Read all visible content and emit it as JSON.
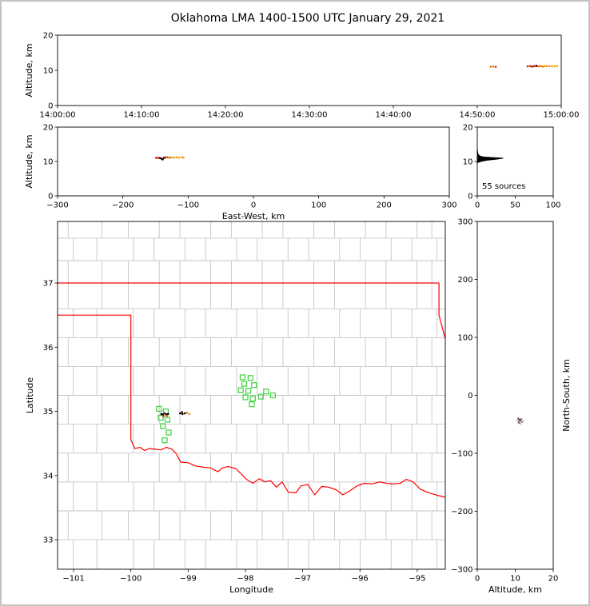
{
  "title": "Oklahoma LMA 1400-1500 UTC January 29, 2021",
  "chart_data": [
    {
      "id": "time_height",
      "type": "scatter",
      "xlabel": "",
      "ylabel": "Altitude, km",
      "xlim": [
        0,
        60
      ],
      "ylim": [
        0,
        20
      ],
      "xticks": [
        {
          "v": 0,
          "l": "14:00:00"
        },
        {
          "v": 10,
          "l": "14:10:00"
        },
        {
          "v": 20,
          "l": "14:20:00"
        },
        {
          "v": 30,
          "l": "14:30:00"
        },
        {
          "v": 40,
          "l": "14:40:00"
        },
        {
          "v": 50,
          "l": "14:50:00"
        },
        {
          "v": 60,
          "l": "15:00:00"
        }
      ],
      "yticks": [
        {
          "v": 0,
          "l": "0"
        },
        {
          "v": 10,
          "l": "10"
        },
        {
          "v": 20,
          "l": "20"
        }
      ],
      "points": [
        [
          51.6,
          11.05,
          "#e87000"
        ],
        [
          51.9,
          11.1,
          "#e87000"
        ],
        [
          52.2,
          11.0,
          "#c83200"
        ],
        [
          56.0,
          11.15,
          "#c81e00"
        ],
        [
          56.3,
          11.2,
          "#c81e00"
        ],
        [
          56.55,
          11.1,
          "#8c0000"
        ],
        [
          56.8,
          11.2,
          "#c81e00"
        ],
        [
          57.05,
          11.3,
          "#000000"
        ],
        [
          57.3,
          11.15,
          "#e85a00"
        ],
        [
          57.55,
          11.2,
          "#e87000"
        ],
        [
          57.8,
          11.1,
          "#e87000"
        ],
        [
          58.05,
          11.2,
          "#f08c00"
        ],
        [
          58.3,
          11.25,
          "#f08c00"
        ],
        [
          58.6,
          11.15,
          "#f08c00"
        ],
        [
          58.9,
          11.2,
          "#f0a000"
        ],
        [
          59.2,
          11.15,
          "#f0a000"
        ],
        [
          59.5,
          11.2,
          "#f0a000"
        ]
      ]
    },
    {
      "id": "ew_height",
      "type": "scatter",
      "xlabel": "East-West, km",
      "ylabel": "Altitude, km",
      "xlim": [
        -300,
        300
      ],
      "ylim": [
        0,
        20
      ],
      "xticks": [
        {
          "v": -300,
          "l": "−300"
        },
        {
          "v": -200,
          "l": "−200"
        },
        {
          "v": -100,
          "l": "−100"
        },
        {
          "v": 0,
          "l": "0"
        },
        {
          "v": 100,
          "l": "100"
        },
        {
          "v": 200,
          "l": "200"
        },
        {
          "v": 300,
          "l": "300"
        }
      ],
      "yticks": [
        {
          "v": 0,
          "l": "0"
        },
        {
          "v": 10,
          "l": "10"
        },
        {
          "v": 20,
          "l": "20"
        }
      ],
      "points": [
        [
          -149,
          11.05,
          "#c81e00"
        ],
        [
          -146,
          11.1,
          "#c81e00"
        ],
        [
          -143.5,
          11.0,
          "#8c0000"
        ],
        [
          -141,
          10.85,
          "#000000"
        ],
        [
          -139,
          10.6,
          "#000000"
        ],
        [
          -137,
          11.1,
          "#000000"
        ],
        [
          -135,
          11.15,
          "#c81e00"
        ],
        [
          -132,
          11.2,
          "#e85a00"
        ],
        [
          -129,
          11.1,
          "#e87000"
        ],
        [
          -126,
          11.2,
          "#f08c00"
        ],
        [
          -122,
          11.15,
          "#f08c00"
        ],
        [
          -118,
          11.2,
          "#f08c00"
        ],
        [
          -114,
          11.1,
          "#f0a000"
        ],
        [
          -110,
          11.2,
          "#f0a000"
        ],
        [
          -107,
          11.15,
          "#f0a000"
        ]
      ]
    },
    {
      "id": "alt_histogram",
      "type": "line",
      "annotation": "55 sources",
      "xlim": [
        0,
        100
      ],
      "ylim": [
        0,
        20
      ],
      "xticks": [
        {
          "v": 0,
          "l": "0"
        },
        {
          "v": 50,
          "l": "50"
        },
        {
          "v": 100,
          "l": "100"
        }
      ],
      "yticks": [
        {
          "v": 0,
          "l": "0"
        },
        {
          "v": 10,
          "l": "10"
        },
        {
          "v": 20,
          "l": "20"
        }
      ],
      "profile": [
        [
          0,
          9.6
        ],
        [
          4,
          10.0
        ],
        [
          12,
          10.35
        ],
        [
          26,
          10.7
        ],
        [
          34,
          10.95
        ],
        [
          20,
          11.15
        ],
        [
          8,
          11.3
        ],
        [
          3,
          11.6
        ],
        [
          1,
          12.1
        ],
        [
          0.4,
          12.8
        ],
        [
          0,
          13.6
        ]
      ]
    },
    {
      "id": "map",
      "type": "scatter",
      "xlabel": "Longitude",
      "ylabel": "Latitude",
      "xlim": [
        -101.28,
        -94.51
      ],
      "ylim": [
        32.54,
        37.96
      ],
      "xticks": [
        {
          "v": -101,
          "l": "−101"
        },
        {
          "v": -100,
          "l": "−100"
        },
        {
          "v": -99,
          "l": "−99"
        },
        {
          "v": -98,
          "l": "−98"
        },
        {
          "v": -97,
          "l": "−97"
        },
        {
          "v": -96,
          "l": "−96"
        },
        {
          "v": -95,
          "l": "−95"
        }
      ],
      "yticks": [
        {
          "v": 33,
          "l": "33"
        },
        {
          "v": 34,
          "l": "34"
        },
        {
          "v": 35,
          "l": "35"
        },
        {
          "v": 36,
          "l": "36"
        },
        {
          "v": 37,
          "l": "37"
        }
      ],
      "state_border_color": "#ff0000",
      "county_color": "#c6c6c6",
      "station_color": "#3fd23f",
      "counties": {
        "vlines": [
          -101.05,
          -100.55,
          -100.0,
          -99.55,
          -99.1,
          -98.65,
          -98.2,
          -97.75,
          -97.3,
          -96.85,
          -96.4,
          -95.95,
          -95.5,
          -95.05,
          -94.7
        ],
        "hlines": [
          33.0,
          33.45,
          33.9,
          34.35,
          34.8,
          35.25,
          35.7,
          36.15,
          36.6,
          37.35,
          37.7
        ]
      },
      "state_borders": [
        [
          [
            -101.3,
            37.0
          ],
          [
            -94.62,
            37.0
          ]
        ],
        [
          [
            -94.62,
            37.0
          ],
          [
            -94.62,
            36.5
          ],
          [
            -94.5,
            36.1
          ]
        ],
        [
          [
            -101.3,
            36.5
          ],
          [
            -100.0,
            36.5
          ],
          [
            -100.0,
            34.56
          ]
        ],
        [
          [
            -100.0,
            34.56
          ],
          [
            -99.93,
            34.42
          ],
          [
            -99.84,
            34.44
          ],
          [
            -99.76,
            34.39
          ],
          [
            -99.68,
            34.42
          ],
          [
            -99.58,
            34.41
          ],
          [
            -99.47,
            34.4
          ],
          [
            -99.38,
            34.44
          ],
          [
            -99.28,
            34.41
          ],
          [
            -99.21,
            34.34
          ],
          [
            -99.13,
            34.21
          ],
          [
            -99.0,
            34.2
          ],
          [
            -98.87,
            34.15
          ],
          [
            -98.74,
            34.13
          ],
          [
            -98.61,
            34.12
          ],
          [
            -98.48,
            34.06
          ],
          [
            -98.4,
            34.12
          ],
          [
            -98.3,
            34.14
          ],
          [
            -98.17,
            34.11
          ],
          [
            -98.09,
            34.04
          ],
          [
            -97.98,
            33.94
          ],
          [
            -97.87,
            33.88
          ],
          [
            -97.76,
            33.95
          ],
          [
            -97.66,
            33.9
          ],
          [
            -97.56,
            33.92
          ],
          [
            -97.46,
            33.82
          ],
          [
            -97.36,
            33.9
          ],
          [
            -97.25,
            33.74
          ],
          [
            -97.12,
            33.73
          ],
          [
            -97.03,
            33.84
          ],
          [
            -96.91,
            33.86
          ],
          [
            -96.79,
            33.7
          ],
          [
            -96.67,
            33.83
          ],
          [
            -96.55,
            33.82
          ],
          [
            -96.42,
            33.78
          ],
          [
            -96.3,
            33.7
          ],
          [
            -96.18,
            33.76
          ],
          [
            -96.05,
            33.84
          ],
          [
            -95.92,
            33.88
          ],
          [
            -95.79,
            33.87
          ],
          [
            -95.66,
            33.9
          ],
          [
            -95.54,
            33.88
          ],
          [
            -95.42,
            33.87
          ],
          [
            -95.3,
            33.88
          ],
          [
            -95.19,
            33.94
          ],
          [
            -95.07,
            33.9
          ],
          [
            -94.95,
            33.79
          ],
          [
            -94.83,
            33.74
          ],
          [
            -94.72,
            33.71
          ],
          [
            -94.6,
            33.68
          ],
          [
            -94.5,
            33.66
          ]
        ]
      ],
      "stations": [
        [
          -98.05,
          35.53
        ],
        [
          -97.91,
          35.52
        ],
        [
          -98.02,
          35.43
        ],
        [
          -97.85,
          35.41
        ],
        [
          -98.08,
          35.33
        ],
        [
          -97.95,
          35.32
        ],
        [
          -97.64,
          35.31
        ],
        [
          -98.0,
          35.22
        ],
        [
          -97.87,
          35.2
        ],
        [
          -97.73,
          35.23
        ],
        [
          -97.52,
          35.25
        ],
        [
          -97.89,
          35.11
        ],
        [
          -99.51,
          35.04
        ],
        [
          -99.39,
          35.0
        ],
        [
          -99.48,
          34.9
        ],
        [
          -99.36,
          34.87
        ],
        [
          -99.44,
          34.77
        ],
        [
          -99.34,
          34.67
        ],
        [
          -99.41,
          34.55
        ]
      ],
      "points": [
        [
          -99.47,
          34.96,
          "#000000"
        ],
        [
          -99.44,
          34.95,
          "#000000"
        ],
        [
          -99.41,
          34.97,
          "#3c0000"
        ],
        [
          -99.38,
          34.95,
          "#000000"
        ],
        [
          -99.35,
          34.96,
          "#000000"
        ],
        [
          -99.43,
          34.93,
          "#c81e00"
        ],
        [
          -99.37,
          34.93,
          "#e87000"
        ],
        [
          -99.14,
          34.97,
          "#000000"
        ],
        [
          -99.1,
          34.96,
          "#000000"
        ],
        [
          -99.06,
          34.97,
          "#000000"
        ],
        [
          -99.11,
          34.99,
          "#3c0000"
        ],
        [
          -98.98,
          34.96,
          "#f08c00"
        ],
        [
          -99.02,
          34.98,
          "#e87000"
        ]
      ]
    },
    {
      "id": "ns_height",
      "type": "scatter",
      "xlabel": "Altitude, km",
      "ylabel_right": "North-South, km",
      "xlim": [
        0,
        20
      ],
      "ylim": [
        -300,
        300
      ],
      "xticks": [
        {
          "v": 0,
          "l": "0"
        },
        {
          "v": 10,
          "l": "10"
        },
        {
          "v": 20,
          "l": "20"
        }
      ],
      "yticks": [
        {
          "v": 300,
          "l": "300"
        },
        {
          "v": 200,
          "l": "200"
        },
        {
          "v": 100,
          "l": "100"
        },
        {
          "v": 0,
          "l": "0"
        },
        {
          "v": -100,
          "l": "−100"
        },
        {
          "v": -200,
          "l": "−200"
        },
        {
          "v": -300,
          "l": "−300"
        }
      ],
      "points": [
        [
          10.8,
          -40,
          "#444444"
        ],
        [
          11.2,
          -42,
          "#000000"
        ],
        [
          11.0,
          -44,
          "#777777"
        ],
        [
          11.5,
          -45,
          "#c85000"
        ],
        [
          10.9,
          -47,
          "#444444"
        ],
        [
          11.3,
          -49,
          "#999999"
        ],
        [
          10.6,
          -43,
          "#aaaaaa"
        ],
        [
          11.8,
          -46,
          "#888888"
        ],
        [
          12.1,
          -44,
          "#bbbbbb"
        ],
        [
          11.6,
          -41,
          "#666666"
        ]
      ]
    }
  ]
}
